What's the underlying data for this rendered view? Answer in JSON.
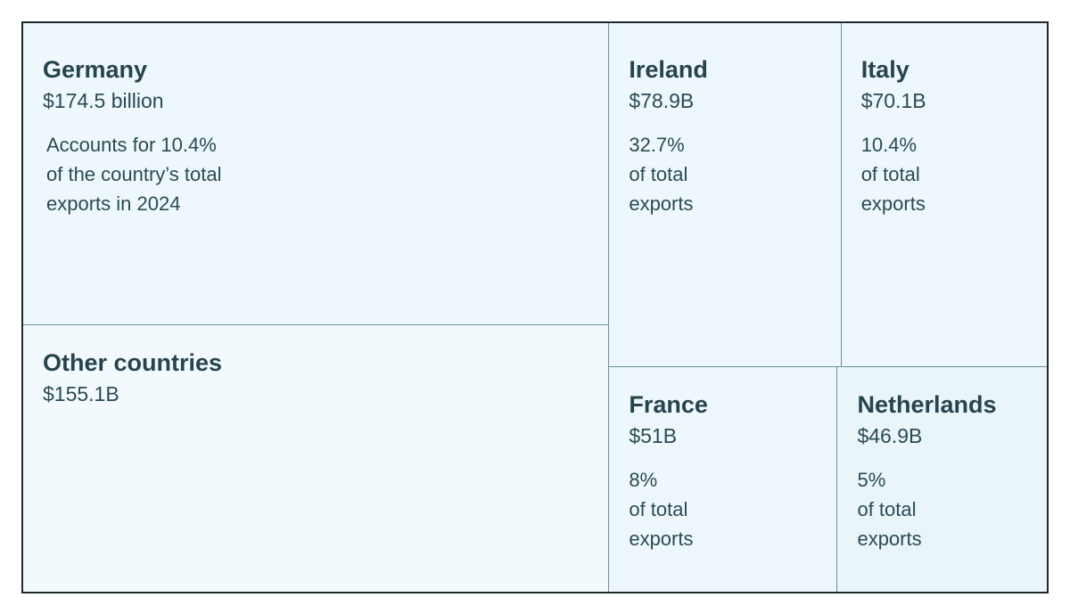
{
  "chart_data": {
    "type": "treemap",
    "title": "",
    "unit": "USD",
    "cells": [
      {
        "name": "Germany",
        "value_label": "$174.5 billion",
        "value": 174.5,
        "share_label": "Accounts for 10.4%\nof the country’s total\nexports in 2024",
        "share_pct": 10.4
      },
      {
        "name": "Other countries",
        "value_label": "$155.1B",
        "value": 155.1,
        "share_label": ""
      },
      {
        "name": "Ireland",
        "value_label": "$78.9B",
        "value": 78.9,
        "share_label": "32.7%\nof total\nexports",
        "share_pct": 32.7
      },
      {
        "name": "Italy",
        "value_label": "$70.1B",
        "value": 70.1,
        "share_label": "10.4%\nof total\nexports",
        "share_pct": 10.4
      },
      {
        "name": "France",
        "value_label": "$51B",
        "value": 51,
        "share_label": "8%\nof total\nexports",
        "share_pct": 8
      },
      {
        "name": "Netherlands",
        "value_label": "$46.9B",
        "value": 46.9,
        "share_label": "5%\nof total\nexports",
        "share_pct": 5
      }
    ]
  }
}
